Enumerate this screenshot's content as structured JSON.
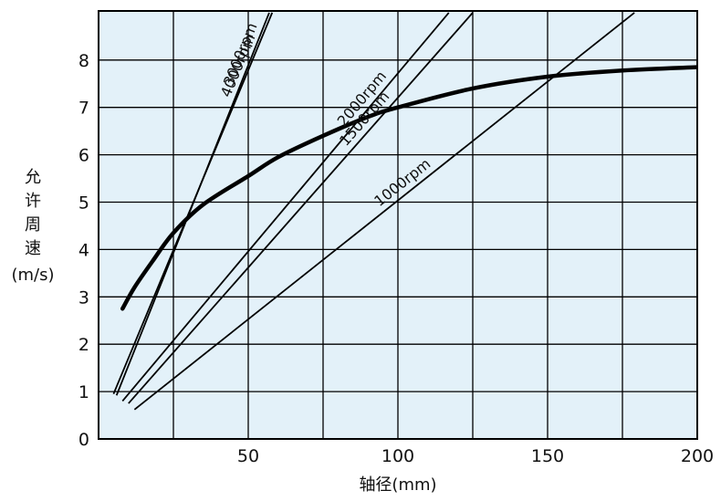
{
  "chart_data": {
    "type": "line",
    "xlabel": "轴径(mm)",
    "ylabel_chars": [
      "允",
      "许",
      "周",
      "速"
    ],
    "ylabel_unit": "(m/s)",
    "xlim": [
      0,
      200
    ],
    "ylim": [
      0,
      9
    ],
    "x_ticks": [
      50,
      100,
      150,
      200
    ],
    "y_ticks": [
      0,
      1,
      2,
      3,
      4,
      5,
      6,
      7,
      8
    ],
    "grid": true,
    "plot_background": "#e3f1f9",
    "line_color": "#000000",
    "limit_curve": {
      "x": [
        8,
        12,
        18,
        25,
        35,
        50,
        60,
        75,
        90,
        100,
        125,
        150,
        175,
        200
      ],
      "y": [
        2.75,
        3.2,
        3.75,
        4.35,
        4.95,
        5.55,
        5.95,
        6.4,
        6.8,
        7.0,
        7.4,
        7.65,
        7.78,
        7.85
      ]
    },
    "series": [
      {
        "name": "4000rpm",
        "x": [
          5,
          58
        ],
        "y": [
          0.95,
          9.0
        ]
      },
      {
        "name": "3000rpm",
        "x": [
          6,
          57
        ],
        "y": [
          0.92,
          9.0
        ]
      },
      {
        "name": "2000rpm",
        "x": [
          8,
          117
        ],
        "y": [
          0.8,
          9.0
        ]
      },
      {
        "name": "1500rpm",
        "x": [
          10,
          125
        ],
        "y": [
          0.75,
          9.0
        ]
      },
      {
        "name": "1000rpm",
        "x": [
          12,
          179
        ],
        "y": [
          0.62,
          9.0
        ]
      }
    ]
  }
}
